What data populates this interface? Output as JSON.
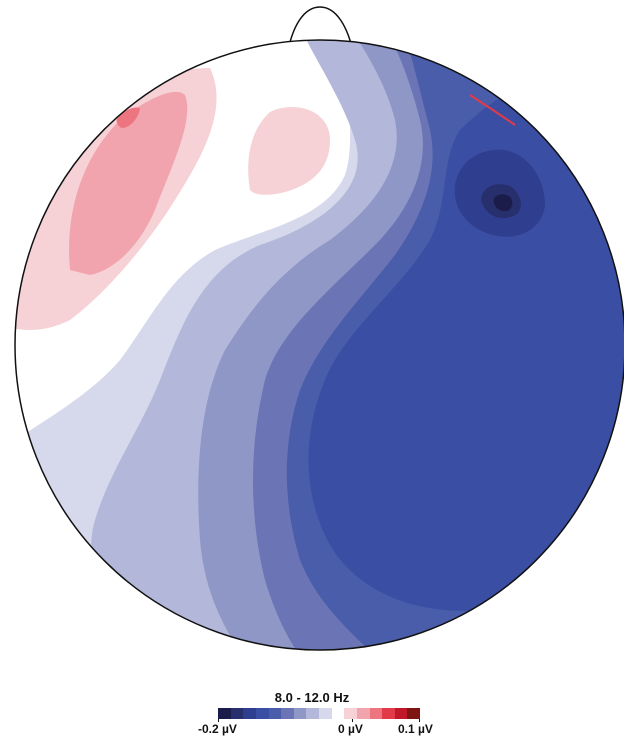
{
  "figure": {
    "frequency_band": "8.0 - 12.0 Hz",
    "colorbar": {
      "min_label": "-0.2 µV",
      "zero_label": "0 µV",
      "max_label": "0.1 µV",
      "colors": [
        "#1c1c4a",
        "#27306d",
        "#2f3e8e",
        "#3a4ea3",
        "#4a5daa",
        "#6b75b6",
        "#8f97c7",
        "#b3b8da",
        "#d6d8ec",
        "#ffffff",
        "#f6d2d7",
        "#f2a4ae",
        "#ec7580",
        "#e23a48",
        "#c0182a",
        "#7e1414"
      ]
    }
  },
  "head_colors": {
    "outline": "#111111",
    "background": "#ffffff"
  }
}
